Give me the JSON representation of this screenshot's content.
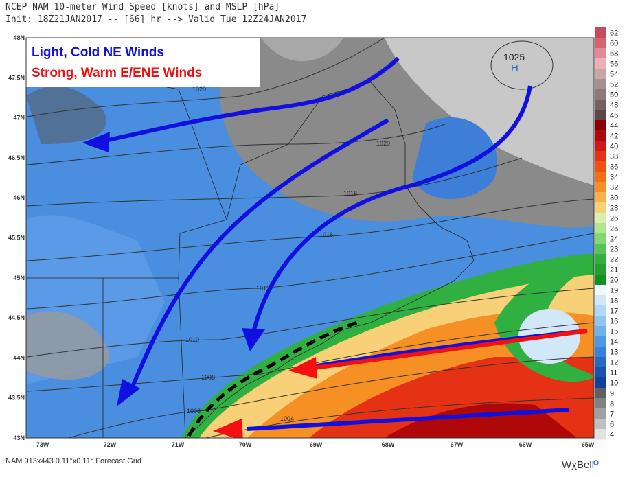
{
  "header": {
    "line1": "NCEP NAM 10-meter Wind Speed [knots] and MSLP [hPa]",
    "line2": "Init: 18Z21JAN2017 -- [66] hr --> Valid Tue 12Z24JAN2017"
  },
  "annotations": {
    "cold": "Light, Cold NE Winds",
    "warm": "Strong, Warm E/ENE Winds"
  },
  "pressure": {
    "high_value": "1025",
    "high_letter": "H",
    "isobars": [
      "1020",
      "1020",
      "1018",
      "1016",
      "1012",
      "1010",
      "1008",
      "1006",
      "1004"
    ]
  },
  "latitudes": [
    "48N",
    "47.5N",
    "47N",
    "46.5N",
    "46N",
    "45.5N",
    "45N",
    "44.5N",
    "44N",
    "43.5N",
    "43N"
  ],
  "longitudes": [
    "73W",
    "72W",
    "71W",
    "70W",
    "69W",
    "68W",
    "67W",
    "66W",
    "65W"
  ],
  "colorbar": [
    {
      "label": "62",
      "color": "#c84a58"
    },
    {
      "label": "60",
      "color": "#d8626e"
    },
    {
      "label": "58",
      "color": "#e48a94"
    },
    {
      "label": "56",
      "color": "#eeb0b4"
    },
    {
      "label": "54",
      "color": "#c4a8a8"
    },
    {
      "label": "52",
      "color": "#a89090"
    },
    {
      "label": "50",
      "color": "#907878"
    },
    {
      "label": "48",
      "color": "#786060"
    },
    {
      "label": "46",
      "color": "#5e4646"
    },
    {
      "label": "44",
      "color": "#8a0000"
    },
    {
      "label": "42",
      "color": "#b00808"
    },
    {
      "label": "40",
      "color": "#d01818"
    },
    {
      "label": "38",
      "color": "#e63214"
    },
    {
      "label": "36",
      "color": "#f05010"
    },
    {
      "label": "34",
      "color": "#f47018"
    },
    {
      "label": "32",
      "color": "#f69024"
    },
    {
      "label": "30",
      "color": "#f8b048"
    },
    {
      "label": "28",
      "color": "#f8d078"
    },
    {
      "label": "26",
      "color": "#d8f0b0"
    },
    {
      "label": "25",
      "color": "#b0e690"
    },
    {
      "label": "24",
      "color": "#84d870"
    },
    {
      "label": "23",
      "color": "#54c454"
    },
    {
      "label": "22",
      "color": "#34b040"
    },
    {
      "label": "21",
      "color": "#22a030"
    },
    {
      "label": "20",
      "color": "#109020"
    },
    {
      "label": "19",
      "color": "#f0f8ff"
    },
    {
      "label": "18",
      "color": "#d0e8f8"
    },
    {
      "label": "17",
      "color": "#b0d8f8"
    },
    {
      "label": "16",
      "color": "#90c6f0"
    },
    {
      "label": "15",
      "color": "#70b0ee"
    },
    {
      "label": "14",
      "color": "#5098e6"
    },
    {
      "label": "13",
      "color": "#3a80de"
    },
    {
      "label": "12",
      "color": "#2a68c8"
    },
    {
      "label": "11",
      "color": "#1a52b0"
    },
    {
      "label": "10",
      "color": "#104098"
    },
    {
      "label": "9",
      "color": "#606060"
    },
    {
      "label": "8",
      "color": "#808080"
    },
    {
      "label": "7",
      "color": "#a0a0a0"
    },
    {
      "label": "6",
      "color": "#c0c0c0"
    },
    {
      "label": "4",
      "color": "#e2e2e2"
    }
  ],
  "footer": {
    "grid": "NAM 913x443 0.11°x0.11° Forecast Grid",
    "brand": "WχBell"
  }
}
